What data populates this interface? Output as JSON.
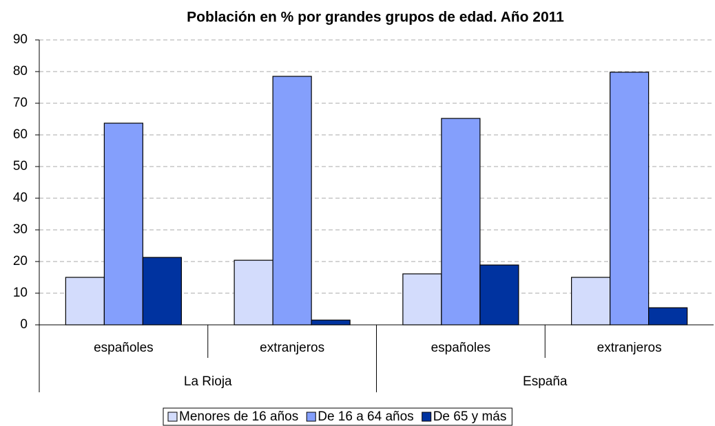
{
  "chart_data": {
    "type": "bar",
    "title": "Población en % por grandes grupos de edad. Año 2011",
    "categories": [
      "españoles",
      "extranjeros",
      "españoles",
      "extranjeros"
    ],
    "groups": [
      "La Rioja",
      "España"
    ],
    "series": [
      {
        "name": "Menores de 16 años",
        "color": "#d3dcfc",
        "values": [
          15.0,
          20.4,
          16.1,
          15.0
        ]
      },
      {
        "name": "De 16 a 64 años",
        "color": "#849ffc",
        "values": [
          63.7,
          78.5,
          65.2,
          79.8
        ]
      },
      {
        "name": "De 65 y más",
        "color": "#0033a0",
        "values": [
          21.3,
          1.5,
          18.9,
          5.4
        ]
      }
    ],
    "ylim": [
      0,
      90
    ],
    "yticks": [
      0,
      10,
      20,
      30,
      40,
      50,
      60,
      70,
      80,
      90
    ],
    "grid": true,
    "legend": "bottom"
  }
}
